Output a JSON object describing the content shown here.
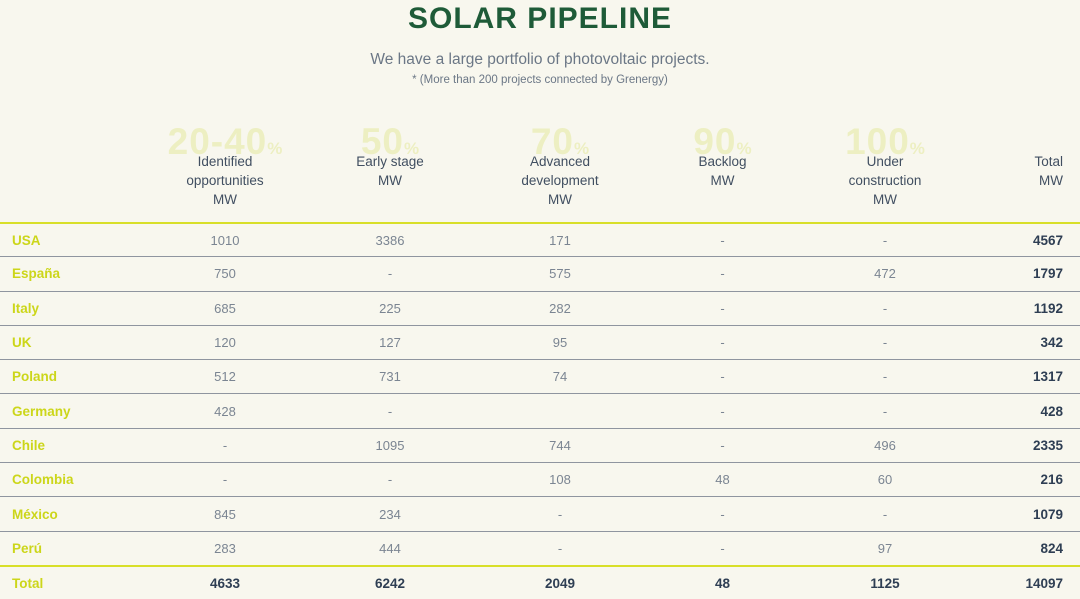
{
  "header": {
    "title": "SOLAR PIPELINE",
    "subtitle": "We have a large portfolio of photovoltaic projects.",
    "note": "* (More than 200 projects connected by Grenergy)"
  },
  "colors": {
    "background": "#f8f7ee",
    "title_green": "#1e5b38",
    "brand_yellow_green": "#ccd61a",
    "accent_line": "#d8df28",
    "watermark": "#edefc2",
    "value_gray": "#7b8592",
    "total_navy": "#2e3e53"
  },
  "chart_data": {
    "type": "table",
    "title": "SOLAR PIPELINE",
    "unit": "MW",
    "columns": [
      {
        "label": "Identified\nopportunities\nMW",
        "watermark": "20-40",
        "watermark_unit": "%"
      },
      {
        "label": "Early stage\nMW",
        "watermark": "50",
        "watermark_unit": "%"
      },
      {
        "label": "Advanced\ndevelopment\nMW",
        "watermark": "70",
        "watermark_unit": "%"
      },
      {
        "label": "Backlog\nMW",
        "watermark": "90",
        "watermark_unit": "%"
      },
      {
        "label": "Under\nconstruction\nMW",
        "watermark": "100",
        "watermark_unit": "%"
      },
      {
        "label": "Total\nMW",
        "watermark": "",
        "watermark_unit": ""
      }
    ],
    "rows": [
      {
        "country": "USA",
        "values": [
          "1010",
          "3386",
          "171",
          "-",
          "-"
        ],
        "total": "4567"
      },
      {
        "country": "España",
        "values": [
          "750",
          "-",
          "575",
          "-",
          "472"
        ],
        "total": "1797"
      },
      {
        "country": "Italy",
        "values": [
          "685",
          "225",
          "282",
          "-",
          "-"
        ],
        "total": "1192"
      },
      {
        "country": "UK",
        "values": [
          "120",
          "127",
          "95",
          "-",
          "-"
        ],
        "total": "342"
      },
      {
        "country": "Poland",
        "values": [
          "512",
          "731",
          "74",
          "-",
          "-"
        ],
        "total": "1317"
      },
      {
        "country": "Germany",
        "values": [
          "428",
          "-",
          "",
          "-",
          "-"
        ],
        "total": "428"
      },
      {
        "country": "Chile",
        "values": [
          "-",
          "1095",
          "744",
          "-",
          "496"
        ],
        "total": "2335"
      },
      {
        "country": "Colombia",
        "values": [
          "-",
          "-",
          "108",
          "48",
          "60"
        ],
        "total": "216"
      },
      {
        "country": "México",
        "values": [
          "845",
          "234",
          "-",
          "-",
          "-"
        ],
        "total": "1079"
      },
      {
        "country": "Perú",
        "values": [
          "283",
          "444",
          "-",
          "-",
          "97"
        ],
        "total": "824"
      }
    ],
    "total_row": {
      "label": "Total",
      "values": [
        "4633",
        "6242",
        "2049",
        "48",
        "1125"
      ],
      "total": "14097"
    }
  }
}
